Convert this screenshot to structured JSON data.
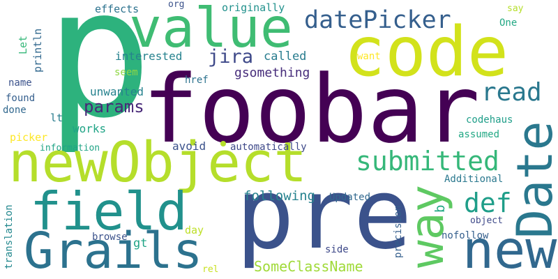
{
  "words": [
    {
      "text": "p",
      "color": "#2db27d"
    },
    {
      "text": "foobar",
      "color": "#440154"
    },
    {
      "text": "value",
      "color": "#3fbc73"
    },
    {
      "text": "code",
      "color": "#d2e21b"
    },
    {
      "text": "newObject",
      "color": "#b5de2b"
    },
    {
      "text": "pre",
      "color": "#3b528b"
    },
    {
      "text": "field",
      "color": "#21918c"
    },
    {
      "text": "Grails",
      "color": "#2c728e"
    },
    {
      "text": "Date",
      "color": "#2a788e"
    },
    {
      "text": "new",
      "color": "#31688e"
    },
    {
      "text": "way",
      "color": "#5ec962"
    },
    {
      "text": "datePicker",
      "color": "#355f8d"
    },
    {
      "text": "submitted",
      "color": "#35b779"
    },
    {
      "text": "read",
      "color": "#2a788e"
    },
    {
      "text": "def",
      "color": "#1f9e89"
    },
    {
      "text": "jira",
      "color": "#3e4989"
    },
    {
      "text": "params",
      "color": "#482878"
    },
    {
      "text": "SomeClassName",
      "color": "#a0da39"
    },
    {
      "text": "following",
      "color": "#26828e"
    },
    {
      "text": "gsomething",
      "color": "#472d7b"
    },
    {
      "text": "called",
      "color": "#287c8e"
    },
    {
      "text": "interested",
      "color": "#26828e"
    },
    {
      "text": "unwanted",
      "color": "#26828e"
    },
    {
      "text": "works",
      "color": "#20a486"
    },
    {
      "text": "picker",
      "color": "#fde725"
    },
    {
      "text": "avoid",
      "color": "#3b528b"
    },
    {
      "text": "automatically",
      "color": "#3e4989"
    },
    {
      "text": "effects",
      "color": "#2c728e"
    },
    {
      "text": "org",
      "color": "#3b528b"
    },
    {
      "text": "originally",
      "color": "#21918c"
    },
    {
      "text": "say",
      "color": "#b5de2b"
    },
    {
      "text": "One",
      "color": "#22a884"
    },
    {
      "text": "want",
      "color": "#fde725"
    },
    {
      "text": "seem",
      "color": "#8fd744"
    },
    {
      "text": "href",
      "color": "#2c728e"
    },
    {
      "text": "name",
      "color": "#3b528b"
    },
    {
      "text": "found",
      "color": "#355f8d"
    },
    {
      "text": "done",
      "color": "#31688e"
    },
    {
      "text": "lt",
      "color": "#287c8e"
    },
    {
      "text": "information",
      "color": "#20a486"
    },
    {
      "text": "codehaus",
      "color": "#1f9e89"
    },
    {
      "text": "assumed",
      "color": "#22a884"
    },
    {
      "text": "Additional",
      "color": "#2a788e"
    },
    {
      "text": "object",
      "color": "#3e4989"
    },
    {
      "text": "nofollow",
      "color": "#355f8d"
    },
    {
      "text": "Updated",
      "color": "#31688e"
    },
    {
      "text": "side",
      "color": "#3e4989"
    },
    {
      "text": "day",
      "color": "#bddf26"
    },
    {
      "text": "browse",
      "color": "#3b528b"
    },
    {
      "text": "gt",
      "color": "#20a486"
    },
    {
      "text": "rel",
      "color": "#c8e020"
    },
    {
      "text": "precision",
      "color": "#355f8d"
    },
    {
      "text": "b",
      "color": "#22a884"
    },
    {
      "text": "Let",
      "color": "#35b779"
    },
    {
      "text": "println",
      "color": "#31688e"
    },
    {
      "text": "translation",
      "color": "#23888e"
    }
  ],
  "dots": [
    {
      "color": "#b5de2b"
    }
  ]
}
